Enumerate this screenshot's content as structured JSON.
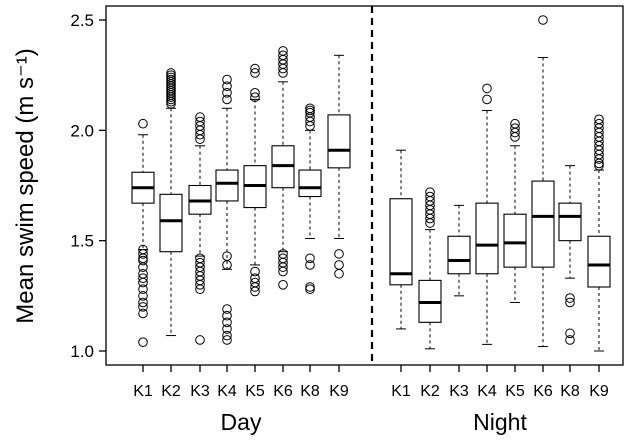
{
  "chart_data": {
    "type": "boxplot",
    "ylabel": "Mean swim speed (m s⁻¹)",
    "ylim": [
      0.95,
      2.55
    ],
    "yticks": [
      "1.0",
      "1.5",
      "2.0",
      "2.5"
    ],
    "groups": [
      {
        "label": "Day",
        "boxes": [
          {
            "category": "K1",
            "whisker_low": 1.46,
            "q1": 1.67,
            "median": 1.74,
            "q3": 1.81,
            "whisker_high": 1.98,
            "outliers": [
              2.03,
              1.46,
              1.44,
              1.42,
              1.41,
              1.38,
              1.35,
              1.33,
              1.31,
              1.28,
              1.25,
              1.22,
              1.2,
              1.17,
              1.04
            ]
          },
          {
            "category": "K2",
            "whisker_low": 1.07,
            "q1": 1.45,
            "median": 1.59,
            "q3": 1.71,
            "whisker_high": 2.1,
            "outliers": [
              2.26,
              2.25,
              2.24,
              2.23,
              2.22,
              2.21,
              2.2,
              2.19,
              2.18,
              2.17,
              2.16,
              2.15,
              2.14,
              2.13,
              2.12
            ]
          },
          {
            "category": "K3",
            "whisker_low": 1.43,
            "q1": 1.62,
            "median": 1.68,
            "q3": 1.75,
            "whisker_high": 1.93,
            "outliers": [
              2.06,
              2.04,
              2.02,
              2.0,
              1.98,
              1.96,
              1.42,
              1.4,
              1.38,
              1.36,
              1.34,
              1.32,
              1.3,
              1.28,
              1.05
            ]
          },
          {
            "category": "K4",
            "whisker_low": 1.37,
            "q1": 1.68,
            "median": 1.76,
            "q3": 1.82,
            "whisker_high": 2.1,
            "outliers": [
              2.23,
              2.2,
              2.17,
              2.14,
              1.43,
              1.39,
              1.19,
              1.16,
              1.13,
              1.1,
              1.07,
              1.05
            ]
          },
          {
            "category": "K5",
            "whisker_low": 1.39,
            "q1": 1.65,
            "median": 1.75,
            "q3": 1.84,
            "whisker_high": 2.14,
            "outliers": [
              2.28,
              2.26,
              2.17,
              2.15,
              1.36,
              1.33,
              1.31,
              1.29,
              1.27
            ]
          },
          {
            "category": "K6",
            "whisker_low": 1.45,
            "q1": 1.74,
            "median": 1.84,
            "q3": 1.93,
            "whisker_high": 2.22,
            "outliers": [
              2.36,
              2.34,
              2.32,
              2.3,
              2.28,
              2.26,
              1.44,
              1.42,
              1.4,
              1.38,
              1.36,
              1.3
            ]
          },
          {
            "category": "K8",
            "whisker_low": 1.51,
            "q1": 1.7,
            "median": 1.74,
            "q3": 1.82,
            "whisker_high": 2.0,
            "outliers": [
              2.1,
              2.09,
              2.08,
              2.06,
              2.04,
              2.02,
              1.42,
              1.39,
              1.29,
              1.28
            ]
          },
          {
            "category": "K9",
            "whisker_low": 1.51,
            "q1": 1.83,
            "median": 1.91,
            "q3": 2.07,
            "whisker_high": 2.34,
            "outliers": [
              1.44,
              1.39,
              1.35
            ]
          }
        ]
      },
      {
        "label": "Night",
        "boxes": [
          {
            "category": "K1",
            "whisker_low": 1.1,
            "q1": 1.3,
            "median": 1.35,
            "q3": 1.69,
            "whisker_high": 1.91,
            "outliers": []
          },
          {
            "category": "K2",
            "whisker_low": 1.01,
            "q1": 1.13,
            "median": 1.22,
            "q3": 1.32,
            "whisker_high": 1.55,
            "outliers": [
              1.72,
              1.7,
              1.68,
              1.66,
              1.64,
              1.62,
              1.6,
              1.58
            ]
          },
          {
            "category": "K3",
            "whisker_low": 1.25,
            "q1": 1.35,
            "median": 1.41,
            "q3": 1.52,
            "whisker_high": 1.66,
            "outliers": []
          },
          {
            "category": "K4",
            "whisker_low": 1.03,
            "q1": 1.35,
            "median": 1.48,
            "q3": 1.67,
            "whisker_high": 2.09,
            "outliers": [
              2.19,
              2.14
            ]
          },
          {
            "category": "K5",
            "whisker_low": 1.22,
            "q1": 1.38,
            "median": 1.49,
            "q3": 1.62,
            "whisker_high": 1.93,
            "outliers": [
              2.03,
              2.01,
              1.99,
              1.97
            ]
          },
          {
            "category": "K6",
            "whisker_low": 1.02,
            "q1": 1.38,
            "median": 1.61,
            "q3": 1.77,
            "whisker_high": 2.33,
            "outliers": [
              2.5
            ]
          },
          {
            "category": "K8",
            "whisker_low": 1.33,
            "q1": 1.5,
            "median": 1.61,
            "q3": 1.67,
            "whisker_high": 1.84,
            "outliers": [
              1.24,
              1.22,
              1.08,
              1.05
            ]
          },
          {
            "category": "K9",
            "whisker_low": 1.0,
            "q1": 1.29,
            "median": 1.39,
            "q3": 1.52,
            "whisker_high": 1.82,
            "outliers": [
              2.05,
              2.03,
              2.01,
              1.99,
              1.97,
              1.95,
              1.93,
              1.91,
              1.89,
              1.87,
              1.85,
              1.84
            ]
          }
        ]
      }
    ],
    "separator": "dashed vertical line between groups",
    "colors": {
      "box_fill": "#ffffff",
      "stroke": "#000000"
    }
  }
}
